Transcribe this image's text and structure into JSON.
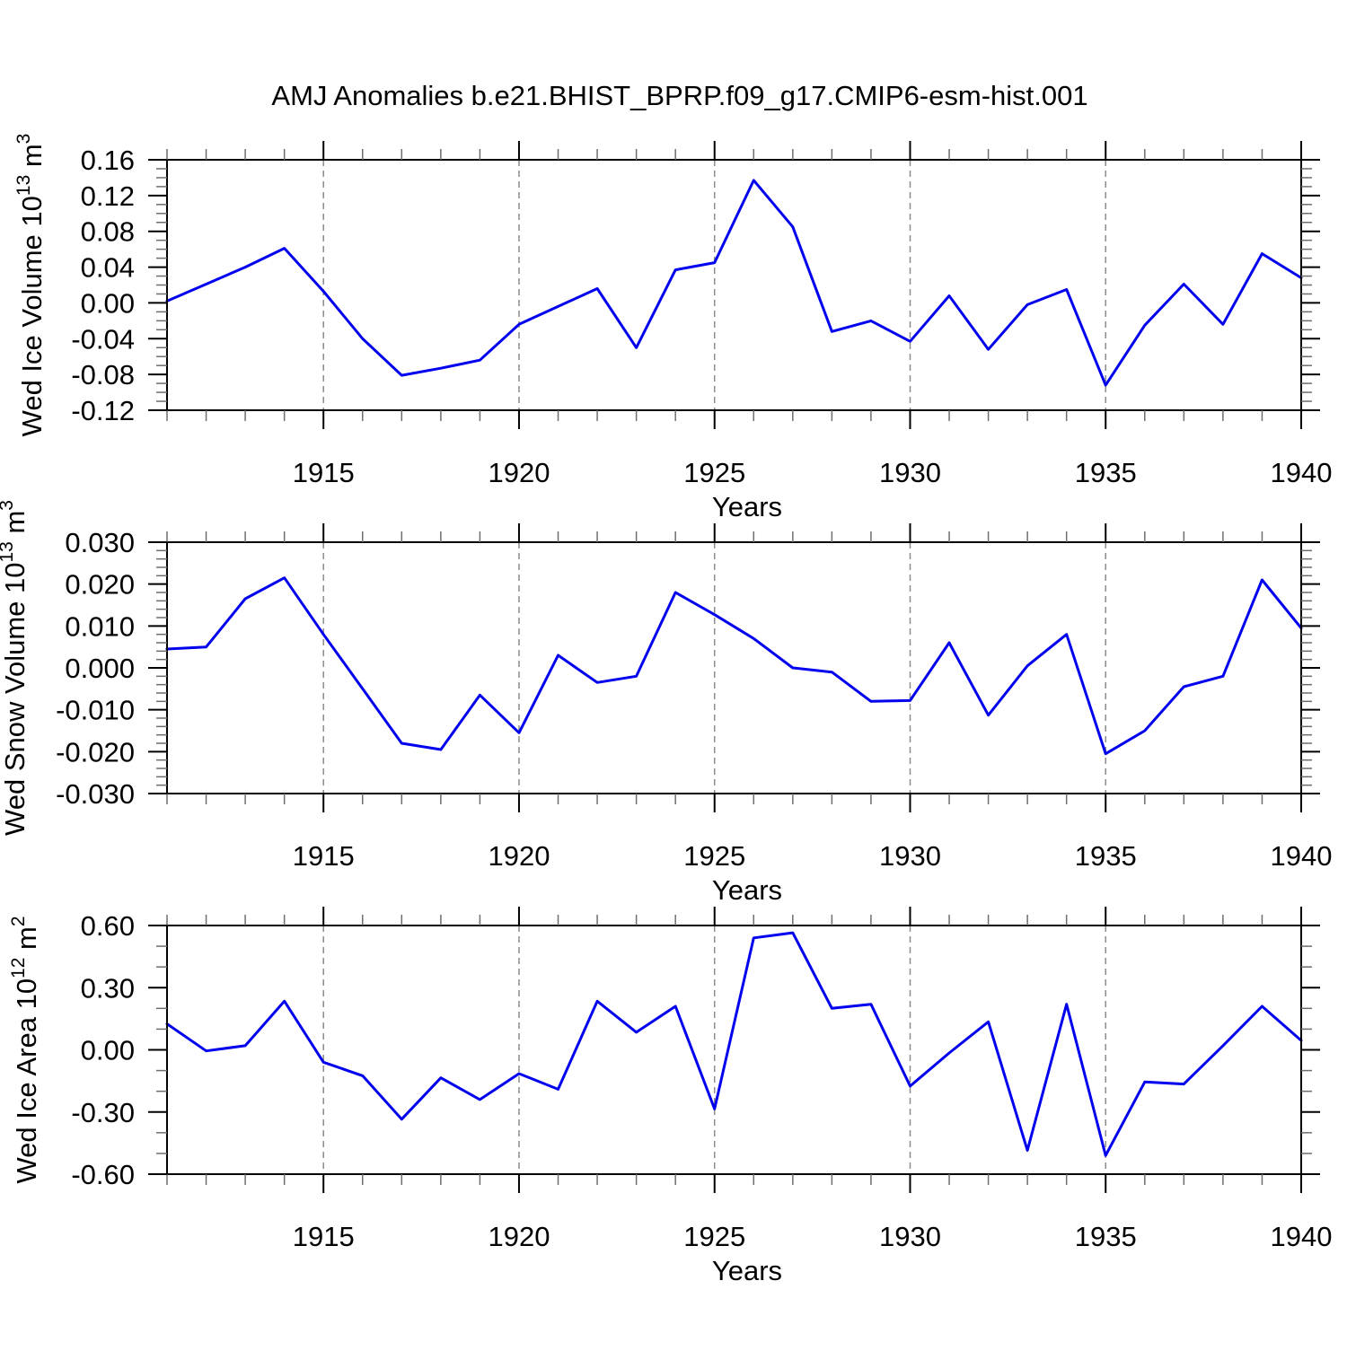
{
  "title": "AMJ Anomalies b.e21.BHIST_BPRP.f09_g17.CMIP6-esm-hist.001",
  "colors": {
    "line": "#0000ee",
    "grid": "#8c8c8c",
    "axis": "#000000",
    "minor_tick": "#6e6e6e",
    "background": "#ffffff"
  },
  "chart_data": [
    {
      "id": "wed-ice-volume",
      "type": "line",
      "title": "",
      "xlabel": "Years",
      "ylabel": "Wed Ice Volume 10^13 m^3",
      "ylabel_parts": [
        {
          "t": "Wed Ice Volume 10"
        },
        {
          "t": "13",
          "sup": true
        },
        {
          "t": " m"
        },
        {
          "t": "3",
          "sup": true
        }
      ],
      "xlim": [
        1911,
        1940
      ],
      "ylim": [
        -0.12,
        0.16
      ],
      "grid": "vertical-dashed",
      "grid_x": [
        1915,
        1920,
        1925,
        1930,
        1935
      ],
      "xticks": [
        1915,
        1920,
        1925,
        1930,
        1935,
        1940
      ],
      "xtick_labels": [
        "1915",
        "1920",
        "1925",
        "1930",
        "1935",
        "1940"
      ],
      "ytick_values": [
        0.16,
        0.12,
        0.08,
        0.04,
        0.0,
        -0.04,
        -0.08,
        -0.12
      ],
      "ytick_labels": [
        "0.16",
        "0.12",
        "0.08",
        "0.04",
        "0.00",
        "-0.04",
        "-0.08",
        "-0.12"
      ],
      "yminor_step": 0.01,
      "x": [
        1911,
        1912,
        1913,
        1914,
        1915,
        1916,
        1917,
        1918,
        1919,
        1920,
        1921,
        1922,
        1923,
        1924,
        1925,
        1926,
        1927,
        1928,
        1929,
        1930,
        1931,
        1932,
        1933,
        1934,
        1935,
        1936,
        1937,
        1938,
        1939,
        1940
      ],
      "values": [
        0.002,
        0.021,
        0.04,
        0.061,
        0.013,
        -0.04,
        -0.081,
        -0.073,
        -0.064,
        -0.024,
        -0.004,
        0.016,
        -0.05,
        0.037,
        0.045,
        0.137,
        0.085,
        -0.032,
        -0.02,
        -0.043,
        0.008,
        -0.052,
        -0.002,
        0.015,
        -0.092,
        -0.025,
        0.021,
        -0.024,
        0.055,
        0.028
      ]
    },
    {
      "id": "wed-snow-volume",
      "type": "line",
      "title": "",
      "xlabel": "Years",
      "ylabel": "Wed Snow Volume 10^13 m^3",
      "ylabel_parts": [
        {
          "t": "Wed Snow Volume 10"
        },
        {
          "t": "13",
          "sup": true
        },
        {
          "t": " m"
        },
        {
          "t": "3",
          "sup": true
        }
      ],
      "xlim": [
        1911,
        1940
      ],
      "ylim": [
        -0.03,
        0.03
      ],
      "grid": "vertical-dashed",
      "grid_x": [
        1915,
        1920,
        1925,
        1930,
        1935
      ],
      "xticks": [
        1915,
        1920,
        1925,
        1930,
        1935,
        1940
      ],
      "xtick_labels": [
        "1915",
        "1920",
        "1925",
        "1930",
        "1935",
        "1940"
      ],
      "ytick_values": [
        0.03,
        0.02,
        0.01,
        0.0,
        -0.01,
        -0.02,
        -0.03
      ],
      "ytick_labels": [
        "0.030",
        "0.020",
        "0.010",
        "0.000",
        "-0.010",
        "-0.020",
        "-0.030"
      ],
      "yminor_step": 0.002,
      "x": [
        1911,
        1912,
        1913,
        1914,
        1915,
        1916,
        1917,
        1918,
        1919,
        1920,
        1921,
        1922,
        1923,
        1924,
        1925,
        1926,
        1927,
        1928,
        1929,
        1930,
        1931,
        1932,
        1933,
        1934,
        1935,
        1936,
        1937,
        1938,
        1939,
        1940
      ],
      "values": [
        0.0045,
        0.005,
        0.0165,
        0.0215,
        0.008,
        -0.005,
        -0.018,
        -0.0195,
        -0.0065,
        -0.0155,
        0.003,
        -0.0035,
        -0.002,
        0.018,
        0.0127,
        0.007,
        0.0,
        -0.001,
        -0.008,
        -0.0078,
        0.006,
        -0.0113,
        0.0005,
        0.008,
        -0.0205,
        -0.015,
        -0.0045,
        -0.002,
        0.021,
        0.0095
      ]
    },
    {
      "id": "wed-ice-area",
      "type": "line",
      "title": "",
      "xlabel": "Years",
      "ylabel": "Wed Ice Area 10^12 m^2",
      "ylabel_parts": [
        {
          "t": "Wed Ice Area 10"
        },
        {
          "t": "12",
          "sup": true
        },
        {
          "t": " m"
        },
        {
          "t": "2",
          "sup": true
        }
      ],
      "xlim": [
        1911,
        1940
      ],
      "ylim": [
        -0.6,
        0.6
      ],
      "grid": "vertical-dashed",
      "grid_x": [
        1915,
        1920,
        1925,
        1930,
        1935
      ],
      "xticks": [
        1915,
        1920,
        1925,
        1930,
        1935,
        1940
      ],
      "xtick_labels": [
        "1915",
        "1920",
        "1925",
        "1930",
        "1935",
        "1940"
      ],
      "ytick_values": [
        0.6,
        0.3,
        0.0,
        -0.3,
        -0.6
      ],
      "ytick_labels": [
        "0.60",
        "0.30",
        "0.00",
        "-0.30",
        "-0.60"
      ],
      "yminor_step": 0.1,
      "x": [
        1911,
        1912,
        1913,
        1914,
        1915,
        1916,
        1917,
        1918,
        1919,
        1920,
        1921,
        1922,
        1923,
        1924,
        1925,
        1926,
        1927,
        1928,
        1929,
        1930,
        1931,
        1932,
        1933,
        1934,
        1935,
        1936,
        1937,
        1938,
        1939,
        1940
      ],
      "values": [
        0.125,
        -0.005,
        0.02,
        0.235,
        -0.06,
        -0.125,
        -0.335,
        -0.135,
        -0.24,
        -0.115,
        -0.19,
        0.235,
        0.085,
        0.21,
        -0.285,
        0.54,
        0.565,
        0.2,
        0.22,
        -0.175,
        -0.015,
        0.135,
        -0.485,
        0.22,
        -0.51,
        -0.155,
        -0.165,
        0.02,
        0.21,
        0.045
      ]
    }
  ]
}
